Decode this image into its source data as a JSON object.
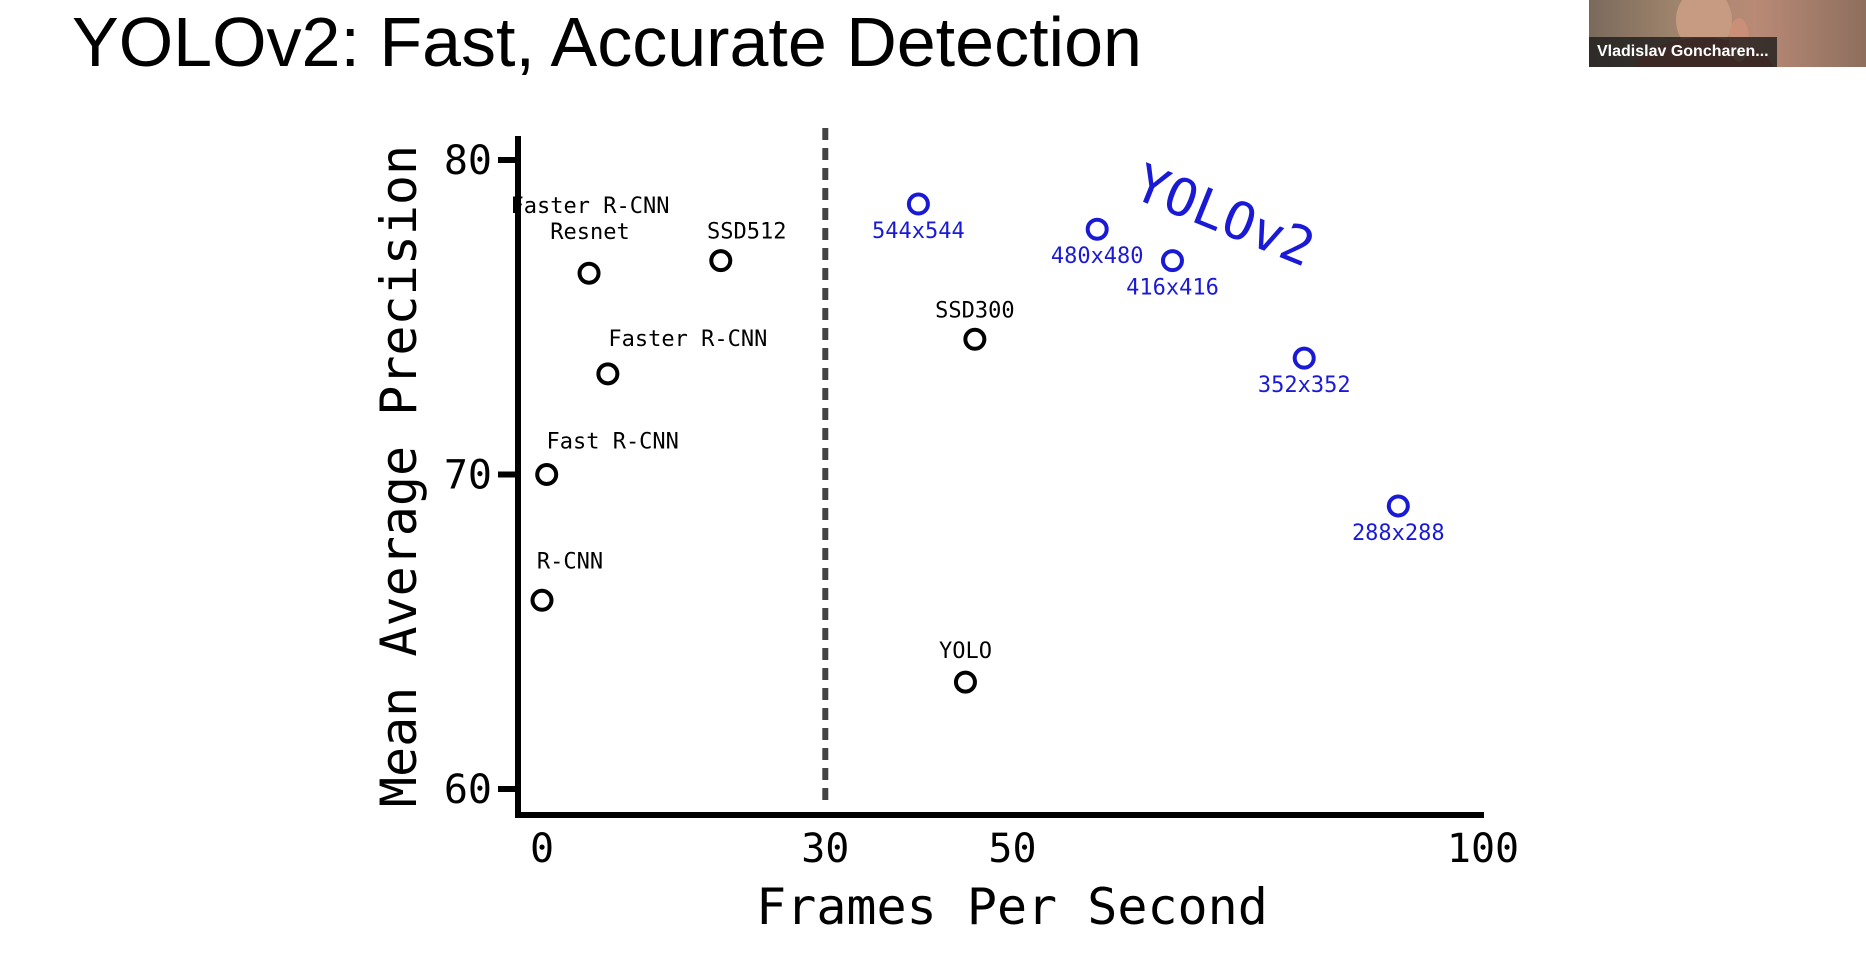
{
  "slide": {
    "title": "YOLOv2: Fast, Accurate Detection"
  },
  "webcam": {
    "participant_name": "Vladislav Goncharen..."
  },
  "colors": {
    "baseline": "#000000",
    "yolov2": "#1a1ad6",
    "dashed_line": "#444444"
  },
  "chart_data": {
    "type": "scatter",
    "xlabel": "Frames Per Second",
    "ylabel": "Mean Average Precision",
    "xticks": [
      0,
      30,
      50,
      100
    ],
    "yticks": [
      60,
      70,
      80
    ],
    "xlim": [
      -2,
      100
    ],
    "ylim": [
      59.5,
      81
    ],
    "vertical_reference_line": {
      "x": 30,
      "style": "dashed"
    },
    "series_label": "YOLOv2",
    "series": [
      {
        "group": "baseline",
        "points": [
          {
            "label": "R-CNN",
            "x": 0,
            "y": 66.0
          },
          {
            "label": "Fast R-CNN",
            "x": 0.5,
            "y": 70.0
          },
          {
            "label": "Faster R-CNN",
            "x": 7,
            "y": 73.2
          },
          {
            "label": "Faster R-CNN Resnet",
            "x": 5,
            "y": 76.4
          },
          {
            "label": "SSD512",
            "x": 19,
            "y": 76.8
          },
          {
            "label": "SSD300",
            "x": 46,
            "y": 74.3
          },
          {
            "label": "YOLO",
            "x": 45,
            "y": 63.4
          }
        ]
      },
      {
        "group": "yolov2",
        "points": [
          {
            "label": "544x544",
            "x": 40,
            "y": 78.6
          },
          {
            "label": "480x480",
            "x": 59,
            "y": 77.8
          },
          {
            "label": "416x416",
            "x": 67,
            "y": 76.8
          },
          {
            "label": "352x352",
            "x": 81,
            "y": 73.7
          },
          {
            "label": "288x288",
            "x": 91,
            "y": 69.0
          }
        ]
      }
    ]
  }
}
